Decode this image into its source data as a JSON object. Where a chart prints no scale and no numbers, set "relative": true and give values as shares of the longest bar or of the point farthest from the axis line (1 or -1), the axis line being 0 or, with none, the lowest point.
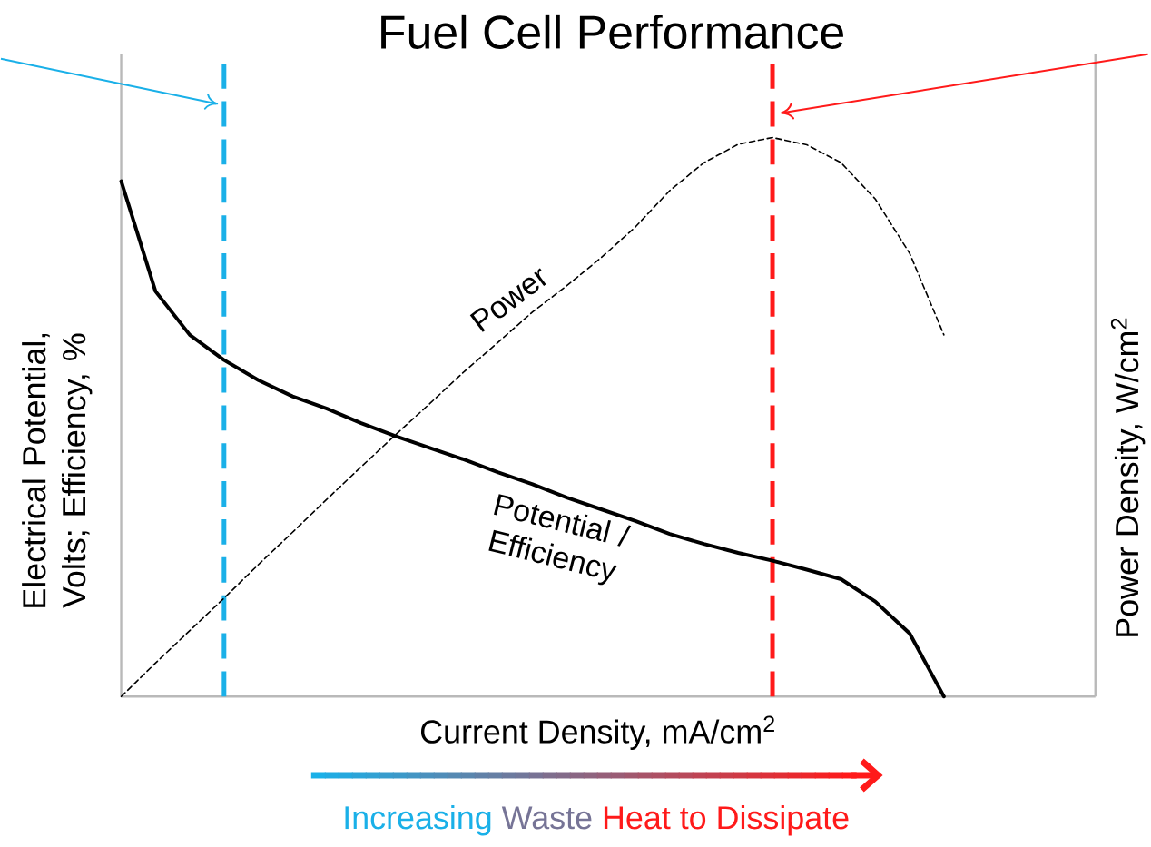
{
  "chart_data": {
    "type": "line",
    "title": "Fuel Cell Performance",
    "xlabel": "Current Density, mA/cm$^{2}$",
    "ylabel": "Electrical Potential, Volts; Efficiency, %",
    "y2label": "Power Density, W/cm$^{2}$",
    "annotations": [
      "Increasing",
      "Waste",
      "Heat to Dissipate"
    ],
    "relative": true,
    "marker": "none",
    "categories": [
      null,
      null,
      null,
      null,
      null,
      null,
      null,
      null,
      null,
      null,
      null,
      null,
      null,
      null,
      null,
      null,
      null,
      null,
      null,
      null,
      null,
      null,
      null,
      null,
      null,
      null,
      null,
      null,
      null
    ],
    "series": [
      {
        "name": "Potential / Efficiency",
        "color": "#000000",
        "line_style": "solid",
        "values": [
          0.922,
          0.725,
          0.647,
          0.602,
          0.566,
          0.537,
          0.515,
          0.489,
          0.466,
          0.445,
          0.424,
          0.401,
          0.38,
          0.356,
          0.335,
          0.314,
          0.291,
          0.273,
          0.257,
          0.243,
          0.227,
          0.21,
          0.17,
          0.113,
          0,
          null,
          null,
          null,
          null
        ]
      },
      {
        "name": "Power",
        "color": "#000000",
        "line_style": "dashed",
        "values": [
          0,
          0.06,
          0.118,
          0.176,
          0.236,
          0.294,
          0.353,
          0.411,
          0.468,
          0.524,
          0.581,
          0.634,
          0.688,
          0.735,
          0.785,
          0.84,
          0.905,
          0.955,
          0.988,
          1,
          0.987,
          0.955,
          0.89,
          0.793,
          0.647,
          null,
          null,
          null,
          null
        ]
      }
    ]
  }
}
